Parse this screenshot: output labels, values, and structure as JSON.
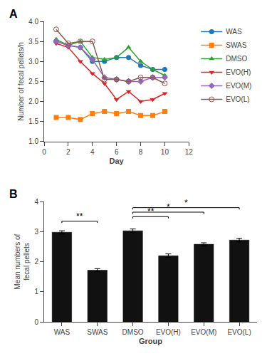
{
  "chart_data": [
    {
      "type": "line",
      "title": "A",
      "x": [
        1,
        2,
        3,
        4,
        5,
        6,
        7,
        8,
        9,
        10
      ],
      "series": [
        {
          "name": "WAS",
          "marker": "circle",
          "values": [
            3.5,
            3.4,
            3.35,
            3.0,
            3.0,
            3.1,
            3.1,
            2.9,
            2.8,
            2.8
          ]
        },
        {
          "name": "SWAS",
          "marker": "square",
          "values": [
            1.6,
            1.6,
            1.55,
            1.7,
            1.75,
            1.7,
            1.75,
            1.65,
            1.65,
            1.75
          ]
        },
        {
          "name": "DMSO",
          "marker": "triangle-up",
          "values": [
            3.55,
            3.4,
            3.5,
            3.1,
            3.05,
            3.1,
            3.35,
            3.0,
            2.8,
            2.65
          ]
        },
        {
          "name": "EVO(H)",
          "marker": "triangle-down",
          "values": [
            3.45,
            3.35,
            3.0,
            2.7,
            2.45,
            2.05,
            2.25,
            2.0,
            2.05,
            2.2
          ]
        },
        {
          "name": "EVO(M)",
          "marker": "diamond",
          "values": [
            3.5,
            3.4,
            3.35,
            3.05,
            2.6,
            2.55,
            2.5,
            2.5,
            2.6,
            2.6
          ]
        },
        {
          "name": "EVO(L)",
          "marker": "circle-open",
          "values": [
            3.8,
            3.45,
            3.5,
            3.5,
            2.55,
            2.55,
            2.5,
            2.6,
            2.6,
            2.45
          ]
        }
      ],
      "xlabel": "Day",
      "ylabel": "Number of fecal pellets/h",
      "xlim": [
        0,
        12
      ],
      "xticks": [
        0,
        2,
        4,
        6,
        8,
        10,
        12
      ],
      "ylim": [
        1.0,
        4.0
      ],
      "yticks": [
        {
          "value": 1,
          "label": "1.0"
        },
        1.5,
        {
          "value": 2,
          "label": "2.0"
        },
        2.5,
        {
          "value": 3,
          "label": "3.0"
        },
        3.5,
        {
          "value": 4,
          "label": "4.0"
        }
      ],
      "grid": false,
      "legend": "right"
    },
    {
      "type": "bar",
      "title": "B",
      "categories": [
        "WAS",
        "SWAS",
        "DMSO",
        "EVO(H)",
        "EVO(M)",
        "EVO(L)"
      ],
      "values": [
        2.98,
        1.72,
        3.03,
        2.2,
        2.58,
        2.72
      ],
      "errors": [
        0.05,
        0.05,
        0.06,
        0.06,
        0.05,
        0.06
      ],
      "color": "#111111",
      "xlabel": "Group",
      "ylabel": "Mean numbers of\nfecal pellets",
      "ylim": [
        0,
        4
      ],
      "yticks": [
        0,
        1,
        2,
        3,
        4
      ],
      "grid": false,
      "annotations": [
        {
          "from": "WAS",
          "to": "SWAS",
          "y": 3.35,
          "text": "**"
        },
        {
          "from": "DMSO",
          "to": "EVO(H)",
          "y": 3.5,
          "text": "**"
        },
        {
          "from": "DMSO",
          "to": "EVO(M)",
          "y": 3.65,
          "text": "*"
        },
        {
          "from": "DMSO",
          "to": "EVO(L)",
          "y": 3.8,
          "text": "*"
        }
      ]
    }
  ]
}
